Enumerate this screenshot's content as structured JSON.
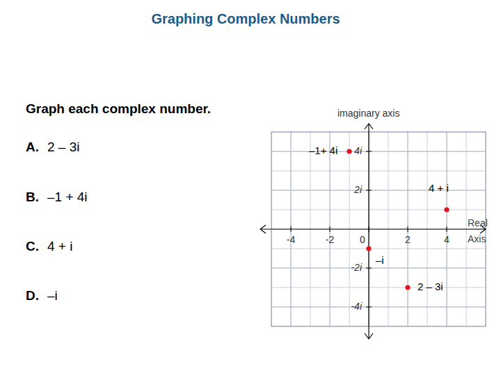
{
  "title": "Graphing Complex Numbers",
  "prompt": "Graph each complex number.",
  "items": [
    {
      "letter": "A.",
      "text": "2 – 3i"
    },
    {
      "letter": "B.",
      "text": "–1 + 4i"
    },
    {
      "letter": "C.",
      "text": "4 + i"
    },
    {
      "letter": "D.",
      "text": "–i"
    }
  ],
  "chart_data": {
    "type": "scatter",
    "x_label": "Real Axis",
    "y_label": "imaginary axis",
    "x": [
      -1,
      4,
      0,
      2
    ],
    "values": [
      4,
      1,
      -1,
      -3
    ],
    "point_labels": [
      "–1+ 4i",
      "4 + i",
      "–i",
      "2 – 3i"
    ],
    "color": "#e0141e",
    "xlim": [
      -5,
      6
    ],
    "ylim": [
      -5,
      5
    ],
    "xticks": [
      -4,
      -2,
      0,
      2,
      4
    ],
    "yticks": [
      {
        "value": -4,
        "label": "-4i"
      },
      {
        "value": -2,
        "label": "-2i"
      },
      {
        "value": 2,
        "label": "2i"
      },
      {
        "value": 4,
        "label": "4i"
      }
    ],
    "grid": true
  }
}
